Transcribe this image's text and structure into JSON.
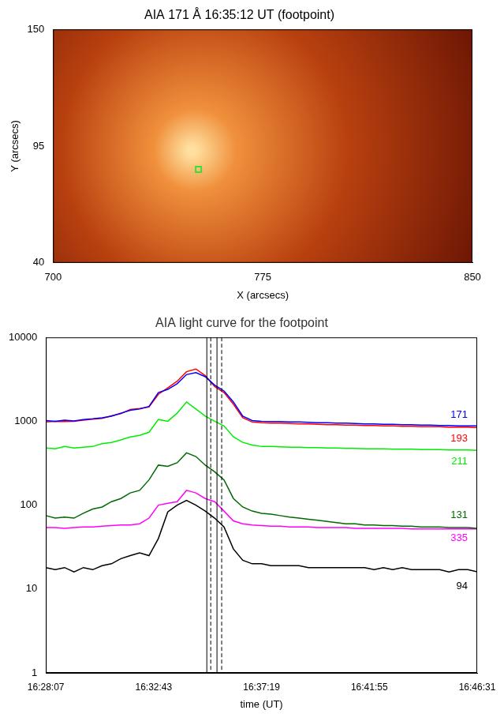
{
  "chart_data": [
    {
      "type": "image",
      "title": "AIA 171 Å 16:35:12 UT (footpoint)",
      "xlabel": "X (arcsecs)",
      "ylabel": "Y (arcsecs)",
      "xlim": [
        700,
        850
      ],
      "xticks": [
        700,
        775,
        850
      ],
      "ylim": [
        40,
        150
      ],
      "yticks": [
        40,
        95,
        150
      ],
      "grid": false,
      "points": [
        {
          "x": 752,
          "y": 84
        }
      ],
      "color": "#3cdc3c",
      "marker": "square"
    },
    {
      "type": "line",
      "title": "AIA light curve for the footpoint",
      "xlabel": "time (UT)",
      "log": "y",
      "grid": false,
      "xlim": [
        "16:28:07",
        "16:46:31"
      ],
      "xticks": [
        "16:28:07",
        "16:32:43",
        "16:37:19",
        "16:41:55",
        "16:46:31"
      ],
      "ylim": [
        1,
        10000
      ],
      "yticks": [
        1,
        10,
        100,
        1000,
        10000
      ],
      "x": [
        "16:28:07",
        "16:28:31",
        "16:28:55",
        "16:29:19",
        "16:29:43",
        "16:30:07",
        "16:30:31",
        "16:30:55",
        "16:31:19",
        "16:31:43",
        "16:32:07",
        "16:32:31",
        "16:32:55",
        "16:33:19",
        "16:33:43",
        "16:34:07",
        "16:34:31",
        "16:34:55",
        "16:35:19",
        "16:35:43",
        "16:36:07",
        "16:36:31",
        "16:36:55",
        "16:37:19",
        "16:37:43",
        "16:38:07",
        "16:38:31",
        "16:38:55",
        "16:39:19",
        "16:39:43",
        "16:40:07",
        "16:40:31",
        "16:40:55",
        "16:41:19",
        "16:41:43",
        "16:42:07",
        "16:42:31",
        "16:42:55",
        "16:43:19",
        "16:43:43",
        "16:44:07",
        "16:44:31",
        "16:44:55",
        "16:45:19",
        "16:45:43",
        "16:46:07",
        "16:46:31"
      ],
      "series": [
        {
          "name": "171",
          "color": "#0000ff",
          "values": [
            1020,
            1000,
            1030,
            1010,
            1050,
            1070,
            1100,
            1150,
            1250,
            1350,
            1400,
            1500,
            2200,
            2400,
            2800,
            3600,
            3800,
            3400,
            2700,
            2300,
            1700,
            1150,
            1020,
            1000,
            990,
            990,
            980,
            980,
            970,
            960,
            960,
            950,
            950,
            940,
            930,
            930,
            920,
            920,
            910,
            910,
            900,
            900,
            890,
            890,
            880,
            880,
            880
          ]
        },
        {
          "name": "193",
          "color": "#ff0000",
          "values": [
            980,
            1000,
            990,
            1000,
            1030,
            1060,
            1080,
            1160,
            1230,
            1380,
            1420,
            1480,
            2100,
            2500,
            3000,
            3900,
            4200,
            3500,
            2600,
            2200,
            1600,
            1100,
            980,
            960,
            950,
            950,
            940,
            930,
            930,
            920,
            910,
            910,
            900,
            900,
            890,
            890,
            880,
            880,
            870,
            870,
            860,
            860,
            860,
            850,
            850,
            850,
            840
          ]
        },
        {
          "name": "211",
          "color": "#00ee00",
          "values": [
            480,
            470,
            500,
            480,
            490,
            500,
            540,
            560,
            600,
            650,
            680,
            740,
            1050,
            1000,
            1250,
            1700,
            1400,
            1150,
            1000,
            880,
            650,
            560,
            520,
            500,
            500,
            495,
            490,
            490,
            485,
            485,
            480,
            480,
            475,
            475,
            470,
            470,
            470,
            465,
            465,
            465,
            460,
            460,
            460,
            455,
            455,
            455,
            450
          ]
        },
        {
          "name": "131",
          "color": "#006a00",
          "values": [
            75,
            70,
            72,
            70,
            80,
            90,
            95,
            110,
            120,
            140,
            150,
            200,
            300,
            290,
            320,
            420,
            380,
            300,
            250,
            200,
            120,
            95,
            85,
            80,
            78,
            75,
            72,
            70,
            68,
            66,
            64,
            62,
            60,
            60,
            58,
            58,
            57,
            57,
            56,
            56,
            55,
            55,
            55,
            54,
            54,
            54,
            53
          ]
        },
        {
          "name": "335",
          "color": "#ff00ff",
          "values": [
            54,
            54,
            53,
            54,
            55,
            55,
            56,
            57,
            58,
            58,
            60,
            70,
            100,
            105,
            110,
            150,
            140,
            120,
            110,
            85,
            65,
            60,
            58,
            57,
            56,
            56,
            55,
            55,
            55,
            54,
            54,
            54,
            54,
            53,
            53,
            53,
            53,
            53,
            53,
            52,
            52,
            52,
            52,
            52,
            52,
            52,
            52
          ]
        },
        {
          "name": "94",
          "color": "#000000",
          "values": [
            18,
            17,
            18,
            16,
            18,
            17,
            19,
            20,
            23,
            25,
            27,
            25,
            40,
            83,
            100,
            114,
            100,
            85,
            70,
            55,
            30,
            22,
            20,
            20,
            19,
            19,
            19,
            19,
            18,
            18,
            18,
            18,
            18,
            18,
            18,
            17,
            18,
            17,
            18,
            17,
            17,
            17,
            17,
            16,
            17,
            17,
            16
          ]
        }
      ],
      "vlines": [
        {
          "x": "16:34:59",
          "line_style": "solid"
        },
        {
          "x": "16:35:09",
          "line_style": "dashed"
        },
        {
          "x": "16:35:25",
          "line_style": "solid"
        },
        {
          "x": "16:35:37",
          "line_style": "dashed"
        }
      ]
    }
  ]
}
